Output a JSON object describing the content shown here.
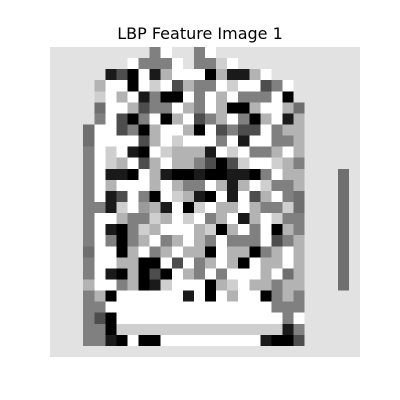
{
  "figure": {
    "title": "LBP Feature Image 1"
  },
  "image": {
    "description_name": "lbp-feature-image",
    "palette": {
      "0": "#e2e2e2",
      "1": "#ffffff",
      "2": "#000000",
      "3": "#1a1a1a",
      "4": "#4d4d4d",
      "5": "#808080",
      "6": "#b3b3b3",
      "7": "#6f6f6f",
      "8": "#9a9a9a",
      "9": "#cfcfcf"
    },
    "pixels": [
      "0000000005100510000000000000",
      "0000000155510559100000000000",
      "0000034213611126336100000000",
      "0000611219146551911451000000",
      "0000916135221516155512000000",
      "0000711645516516226116700000",
      "0000514251261456152613600000",
      "0007114526116214544156600000",
      "0007111146191115131155600000",
      "0005191321966631915561600000",
      "0005196146166542491196500000",
      "0005133216322322332516600070",
      "0005161116165516361955600070",
      "0005134152196321314615700070",
      "0005539186312916616559700070",
      "0005116559619156136195500070",
      "0005132596111692615126500070",
      "0005152561561651555145600070",
      "0007112615616621662561600070",
      "0005116622141561621661600070",
      "0005132624216515111617600070",
      "0006115623911126916656600070",
      "0005621111113121611256500000",
      "0005511111111111111155500000",
      "0005421111111111111115100000",
      "0005529999999999999993500000",
      "0005532122111111111322400000",
      "0000000000000000000000000000"
    ]
  }
}
